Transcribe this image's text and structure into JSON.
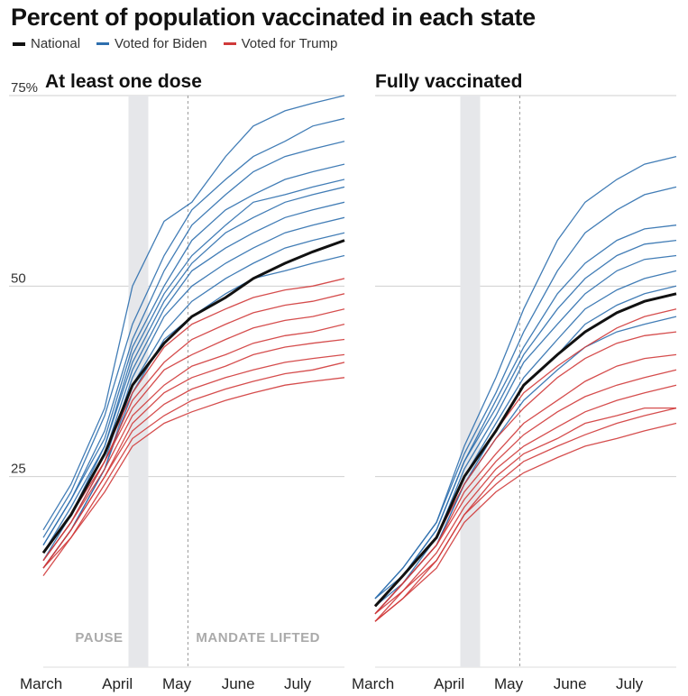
{
  "title": "Percent of population vaccinated in each state",
  "legend": [
    {
      "label": "National",
      "color": "#111111"
    },
    {
      "label": "Voted for Biden",
      "color": "#2e6fae"
    },
    {
      "label": "Voted for Trump",
      "color": "#d03a3a"
    }
  ],
  "chart_data": [
    {
      "type": "line",
      "title": "At least one dose",
      "x_ticks": [
        "March",
        "April",
        "May",
        "June",
        "July"
      ],
      "ylim": [
        0,
        75
      ],
      "y_ticks": [
        {
          "value": 75,
          "label": "75%"
        },
        {
          "value": 50,
          "label": "50"
        },
        {
          "value": 25,
          "label": "25"
        }
      ],
      "grid": true,
      "annotations": [
        {
          "label": "PAUSE",
          "type": "band",
          "start": "April 13",
          "end": "April 23"
        },
        {
          "label": "MANDATE LIFTED",
          "type": "dashed-line",
          "date": "May 13"
        }
      ],
      "x": [
        "Mar 1",
        "Mar 15",
        "Apr 1",
        "Apr 15",
        "May 1",
        "May 15",
        "Jun 1",
        "Jun 15",
        "Jul 1",
        "Jul 15",
        "Jul 31"
      ],
      "series": [
        {
          "name": "National",
          "values": [
            15,
            20,
            28,
            37,
            42.5,
            46,
            48.5,
            51,
            53,
            54.5,
            56
          ]
        }
      ],
      "state_series": {
        "Voted for Biden": [
          [
            18,
            24,
            34,
            50,
            58.5,
            61,
            67,
            71,
            73,
            74,
            75
          ],
          [
            17,
            23,
            33,
            45,
            54,
            60,
            64,
            67,
            69,
            71,
            72
          ],
          [
            16,
            22,
            31,
            43,
            52,
            58,
            62,
            65,
            67,
            68,
            69
          ],
          [
            16,
            22,
            30,
            42,
            50,
            56,
            60,
            62,
            64,
            65,
            66
          ],
          [
            15,
            21,
            29,
            41,
            49,
            54,
            58,
            61,
            62,
            63,
            64
          ],
          [
            15,
            20,
            29,
            40,
            48,
            53,
            57,
            59,
            61,
            62,
            63
          ],
          [
            14,
            20,
            28,
            39,
            47,
            52,
            55,
            57,
            59,
            60,
            61
          ],
          [
            14,
            19,
            27,
            38,
            46,
            50,
            53,
            55,
            57,
            58,
            59
          ],
          [
            13,
            18,
            26,
            37,
            44,
            48,
            51,
            53,
            55,
            56,
            57
          ],
          [
            13,
            18,
            26,
            36,
            43,
            46,
            49,
            51,
            52,
            53,
            54
          ]
        ],
        "Voted for Trump": [
          [
            15,
            20,
            28,
            36,
            42,
            45,
            47,
            48.5,
            49.5,
            50,
            51
          ],
          [
            15,
            20,
            27,
            35,
            40,
            43,
            45,
            46.5,
            47.5,
            48,
            49
          ],
          [
            14,
            19,
            27,
            34,
            39,
            41,
            43,
            44.5,
            45.5,
            46,
            47
          ],
          [
            14,
            19,
            26,
            33,
            37,
            39.5,
            41,
            42.5,
            43.5,
            44,
            45
          ],
          [
            13,
            18,
            25,
            32,
            36,
            38,
            39.5,
            41,
            42,
            42.5,
            43
          ],
          [
            13,
            18,
            25,
            31,
            34.5,
            36.5,
            38,
            39,
            40,
            40.5,
            41
          ],
          [
            13,
            17,
            24,
            30,
            33,
            35,
            36.5,
            37.5,
            38.5,
            39,
            40
          ],
          [
            12,
            17,
            23,
            29,
            32,
            33.5,
            35,
            36,
            37,
            37.5,
            38
          ]
        ]
      }
    },
    {
      "type": "line",
      "title": "Fully vaccinated",
      "x_ticks": [
        "March",
        "April",
        "May",
        "June",
        "July"
      ],
      "ylim": [
        0,
        75
      ],
      "grid": true,
      "annotations": [
        {
          "label": "",
          "type": "band",
          "start": "April 13",
          "end": "April 23"
        },
        {
          "label": "",
          "type": "dashed-line",
          "date": "May 13"
        }
      ],
      "x": [
        "Mar 1",
        "Mar 15",
        "Apr 1",
        "Apr 15",
        "May 1",
        "May 15",
        "Jun 1",
        "Jun 15",
        "Jul 1",
        "Jul 15",
        "Jul 31"
      ],
      "series": [
        {
          "name": "National",
          "values": [
            8,
            12,
            17,
            25,
            31,
            37,
            41,
            44,
            46.5,
            48,
            49
          ]
        }
      ],
      "state_series": {
        "Voted for Biden": [
          [
            9,
            13,
            19,
            29,
            38,
            47,
            56,
            61,
            64,
            66,
            67
          ],
          [
            9,
            13,
            19,
            28,
            36,
            44,
            52,
            57,
            60,
            62,
            63
          ],
          [
            9,
            12,
            18,
            27,
            35,
            42,
            49,
            53,
            56,
            57.5,
            58
          ],
          [
            8,
            12,
            18,
            27,
            34,
            41,
            47,
            51,
            54,
            55.5,
            56
          ],
          [
            8,
            12,
            17,
            26,
            33,
            40,
            45,
            49,
            52,
            53.5,
            54
          ],
          [
            8,
            11,
            17,
            25,
            32,
            38,
            43,
            47,
            49.5,
            51,
            52
          ],
          [
            7,
            11,
            16,
            24,
            31,
            37,
            41,
            45,
            47.5,
            49,
            50
          ],
          [
            7,
            11,
            16,
            24,
            30,
            35,
            39,
            42,
            44,
            45,
            46
          ]
        ],
        "Voted for Trump": [
          [
            8,
            12,
            17,
            25,
            31,
            36,
            39.5,
            42,
            44.5,
            46,
            47
          ],
          [
            8,
            12,
            17,
            24,
            30,
            34,
            38,
            40.5,
            42.5,
            43.5,
            44
          ],
          [
            7,
            11,
            16,
            23,
            28,
            32,
            35,
            37.5,
            39.5,
            40.5,
            41
          ],
          [
            7,
            11,
            16,
            22,
            27,
            30.5,
            33.5,
            35.5,
            37,
            38,
            39
          ],
          [
            7,
            10,
            15,
            21,
            26,
            29,
            31.5,
            33.5,
            35,
            36,
            37
          ],
          [
            6,
            10,
            14,
            20,
            25,
            28,
            30,
            32,
            33,
            34,
            34
          ],
          [
            6,
            9,
            14,
            20,
            24,
            27,
            29,
            30.5,
            32,
            33,
            34
          ],
          [
            6,
            9,
            13,
            19,
            23,
            25.5,
            27.5,
            29,
            30,
            31,
            32
          ]
        ]
      }
    }
  ]
}
